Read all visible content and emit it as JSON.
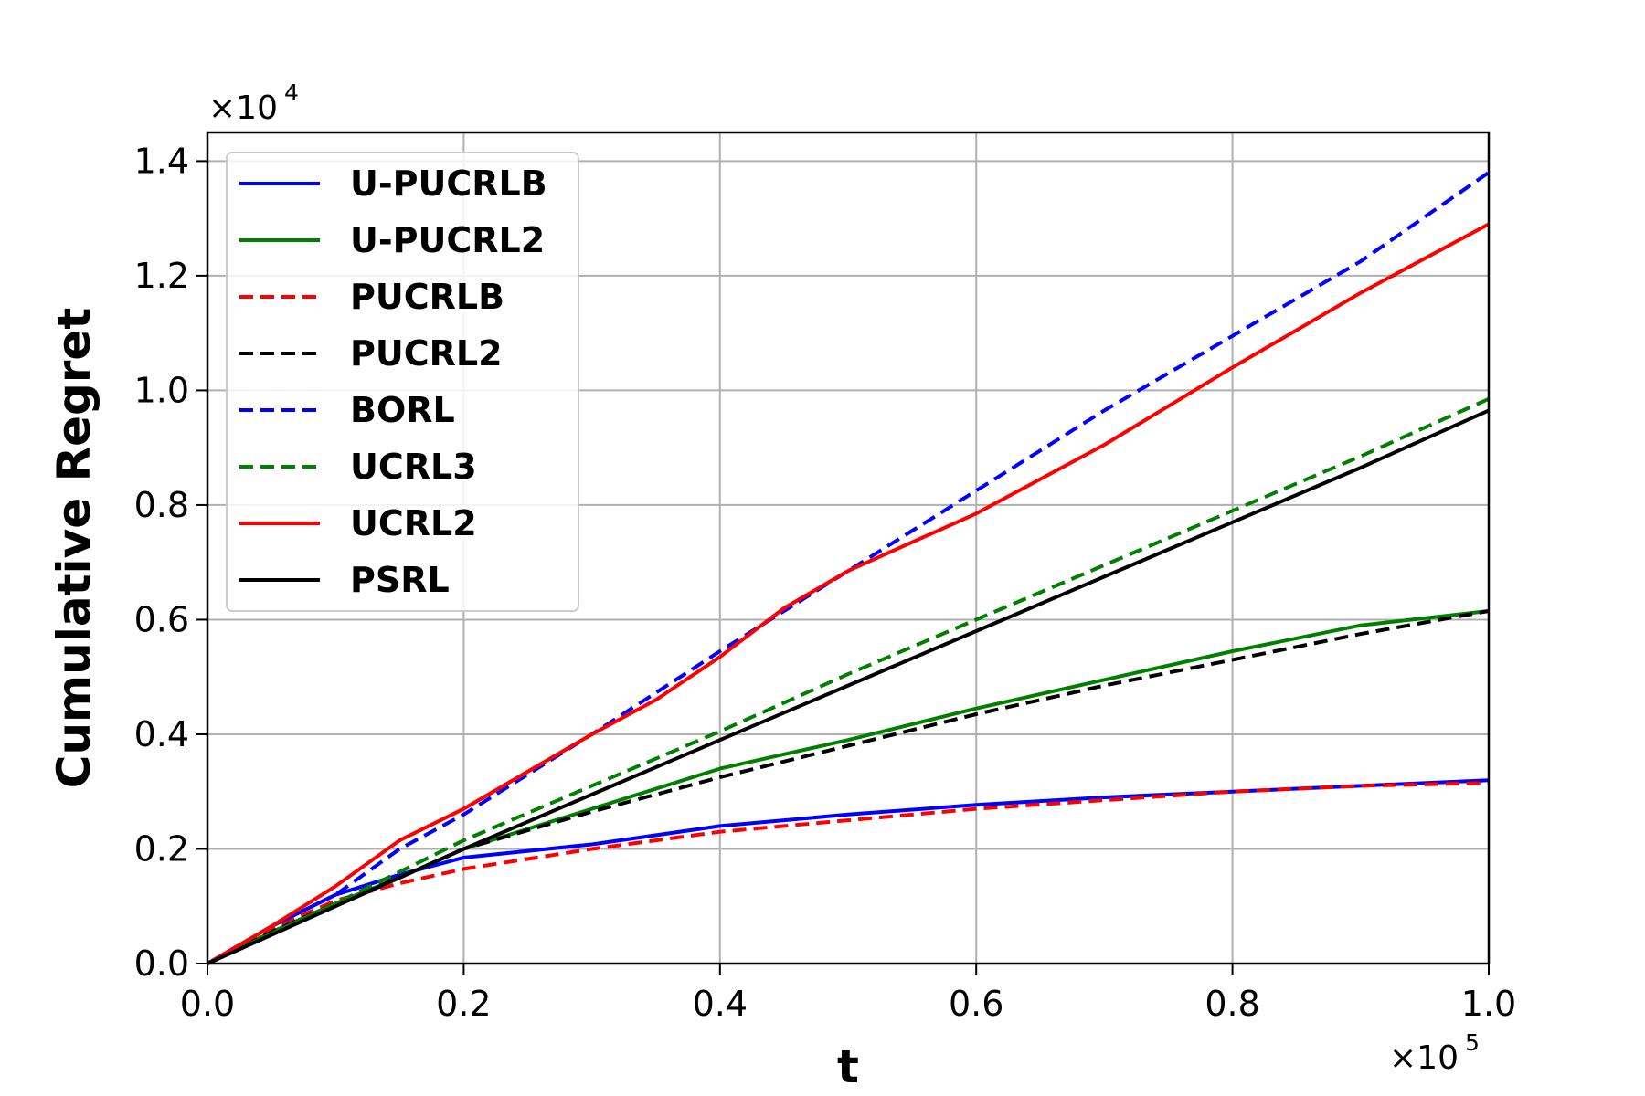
{
  "chart_data": {
    "type": "line",
    "title": "",
    "xlabel": "t",
    "ylabel": "Cumulative Regret",
    "x_multiplier": {
      "base": "×10",
      "exp": "5"
    },
    "y_multiplier": {
      "base": "×10",
      "exp": "4"
    },
    "xlim": [
      0.0,
      1.0
    ],
    "ylim": [
      0.0,
      1.45
    ],
    "xticks": [
      "0.0",
      "0.2",
      "0.4",
      "0.6",
      "0.8",
      "1.0"
    ],
    "yticks": [
      "0.0",
      "0.2",
      "0.4",
      "0.6",
      "0.8",
      "1.0",
      "1.2",
      "1.4"
    ],
    "grid": true,
    "legend_position": "upper-left",
    "series": [
      {
        "name": "U-PUCRLB",
        "color": "#0000ff",
        "dash": "solid",
        "x": [
          0,
          0.05,
          0.1,
          0.15,
          0.2,
          0.3,
          0.4,
          0.5,
          0.6,
          0.7,
          0.8,
          0.9,
          1.0
        ],
        "y": [
          0,
          0.065,
          0.12,
          0.155,
          0.185,
          0.208,
          0.24,
          0.26,
          0.277,
          0.29,
          0.3,
          0.31,
          0.32
        ]
      },
      {
        "name": "U-PUCRL2",
        "color": "#008000",
        "dash": "solid",
        "x": [
          0,
          0.05,
          0.1,
          0.15,
          0.2,
          0.3,
          0.4,
          0.5,
          0.6,
          0.7,
          0.8,
          0.9,
          1.0
        ],
        "y": [
          0,
          0.055,
          0.105,
          0.15,
          0.2,
          0.27,
          0.34,
          0.39,
          0.445,
          0.495,
          0.545,
          0.59,
          0.615
        ]
      },
      {
        "name": "PUCRLB",
        "color": "#ff0000",
        "dash": "dashed",
        "x": [
          0,
          0.05,
          0.1,
          0.15,
          0.2,
          0.3,
          0.4,
          0.5,
          0.6,
          0.7,
          0.8,
          0.9,
          1.0
        ],
        "y": [
          0,
          0.06,
          0.11,
          0.14,
          0.165,
          0.2,
          0.23,
          0.25,
          0.27,
          0.285,
          0.3,
          0.31,
          0.315
        ]
      },
      {
        "name": "PUCRL2",
        "color": "#000000",
        "dash": "dashed",
        "x": [
          0,
          0.05,
          0.1,
          0.15,
          0.2,
          0.3,
          0.4,
          0.5,
          0.6,
          0.7,
          0.8,
          0.9,
          1.0
        ],
        "y": [
          0,
          0.055,
          0.105,
          0.15,
          0.2,
          0.265,
          0.325,
          0.38,
          0.435,
          0.485,
          0.53,
          0.575,
          0.615
        ]
      },
      {
        "name": "BORL",
        "color": "#0000ff",
        "dash": "dashed",
        "x": [
          0,
          0.05,
          0.1,
          0.15,
          0.2,
          0.3,
          0.4,
          0.5,
          0.6,
          0.7,
          0.8,
          0.9,
          1.0
        ],
        "y": [
          0,
          0.065,
          0.12,
          0.2,
          0.26,
          0.4,
          0.545,
          0.685,
          0.825,
          0.965,
          1.095,
          1.225,
          1.38
        ]
      },
      {
        "name": "UCRL3",
        "color": "#008000",
        "dash": "dashed",
        "x": [
          0,
          0.1,
          0.2,
          0.3,
          0.4,
          0.5,
          0.6,
          0.7,
          0.8,
          0.9,
          1.0
        ],
        "y": [
          0,
          0.105,
          0.215,
          0.31,
          0.405,
          0.505,
          0.6,
          0.695,
          0.79,
          0.885,
          0.985
        ]
      },
      {
        "name": "UCRL2",
        "color": "#ff0000",
        "dash": "solid",
        "x": [
          0,
          0.05,
          0.1,
          0.15,
          0.2,
          0.3,
          0.35,
          0.4,
          0.45,
          0.5,
          0.6,
          0.7,
          0.8,
          0.9,
          1.0
        ],
        "y": [
          0,
          0.065,
          0.135,
          0.215,
          0.27,
          0.4,
          0.46,
          0.535,
          0.62,
          0.685,
          0.785,
          0.905,
          1.04,
          1.17,
          1.29
        ]
      },
      {
        "name": "PSRL",
        "color": "#000000",
        "dash": "solid",
        "x": [
          0,
          0.1,
          0.2,
          0.3,
          0.4,
          0.5,
          0.6,
          0.7,
          0.8,
          0.9,
          1.0
        ],
        "y": [
          0,
          0.1,
          0.2,
          0.295,
          0.39,
          0.485,
          0.58,
          0.675,
          0.77,
          0.865,
          0.965
        ]
      }
    ]
  }
}
